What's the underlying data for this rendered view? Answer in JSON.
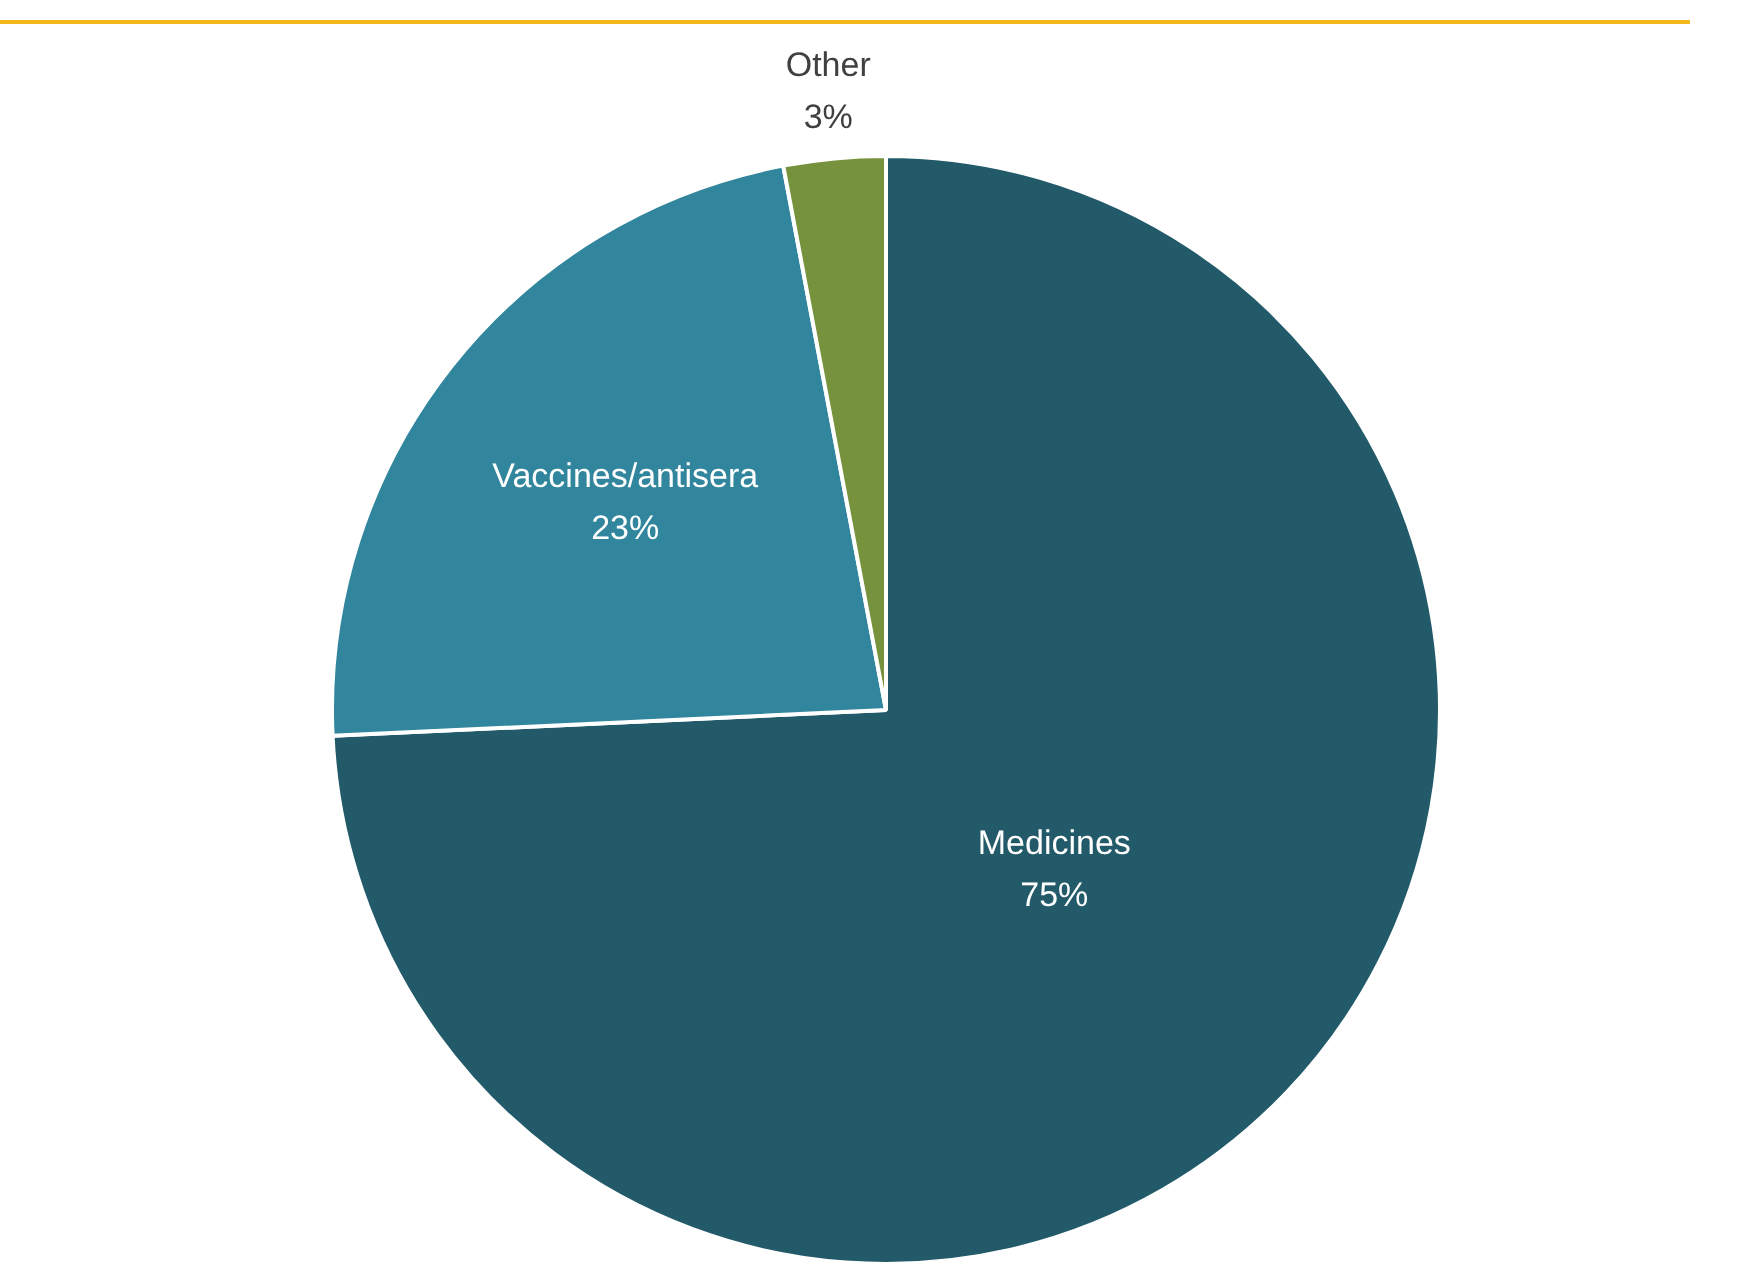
{
  "chart_data": {
    "type": "pie",
    "categories": [
      "Medicines",
      "Vaccines/antisera",
      "Other"
    ],
    "values": [
      75,
      23,
      3
    ],
    "value_labels": [
      "75%",
      "23%",
      "3%"
    ],
    "colors": [
      "#225a69",
      "#31869e",
      "#76923c"
    ],
    "legend": false
  }
}
